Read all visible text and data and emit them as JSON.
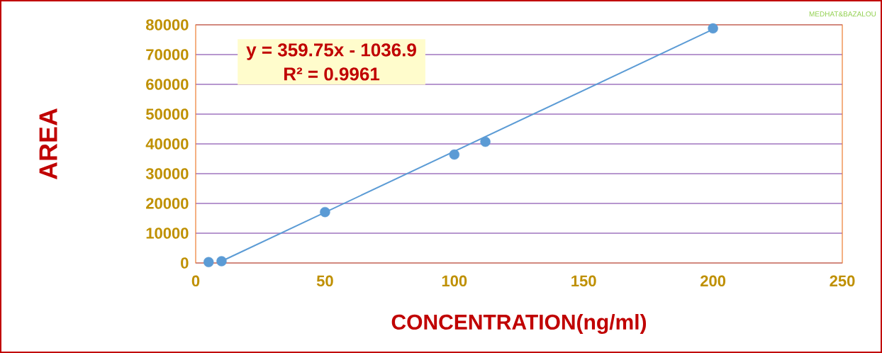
{
  "chart_data": {
    "type": "scatter",
    "xlabel": "CONCENTRATION(ng/ml)",
    "ylabel": "AREA",
    "annotations": [
      "y = 359.75x - 1036.9",
      "R² = 0.9961",
      "MEDHAT&BAZALOU"
    ],
    "series": [
      {
        "type": "scatter",
        "color": "#5b9bd5",
        "x": [
          5,
          10,
          50,
          100,
          112,
          200
        ],
        "values": [
          300,
          600,
          17100,
          36400,
          40700,
          78800
        ],
        "marker": "circle"
      },
      {
        "type": "line",
        "color": "#5b9bd5",
        "x": [
          10,
          200
        ],
        "values": [
          600,
          78500
        ],
        "marker": "none"
      }
    ],
    "xlim": [
      0,
      250
    ],
    "xticks": [
      0,
      50,
      100,
      150,
      200,
      250
    ],
    "ylim": [
      0,
      80000
    ],
    "yticks": [
      0,
      10000,
      20000,
      30000,
      40000,
      50000,
      60000,
      70000,
      80000
    ],
    "grid": "y"
  }
}
